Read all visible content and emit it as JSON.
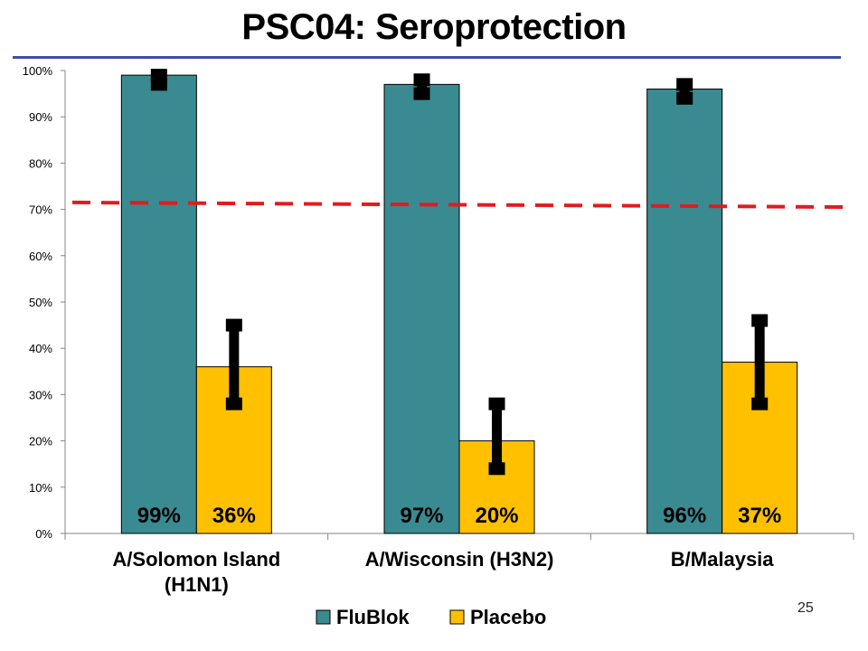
{
  "slide": {
    "title": "PSC04: Seroprotection",
    "slide_number": "25"
  },
  "colors": {
    "title_rule": "#3f4f9f",
    "flublok": "#3a8a91",
    "placebo": "#ffc000",
    "threshold": "#e41a1c",
    "error_bar": "#000000"
  },
  "chart_data": {
    "type": "bar",
    "categories": [
      [
        "A/Solomon Island",
        "(H1N1)"
      ],
      [
        "A/Wisconsin (H3N2)"
      ],
      [
        "B/Malaysia"
      ]
    ],
    "series": [
      {
        "name": "FluBlok",
        "values": [
          99,
          97,
          96
        ],
        "labels": [
          "99%",
          "97%",
          "96%"
        ],
        "ci": [
          [
            97,
            99
          ],
          [
            95,
            98
          ],
          [
            94,
            97
          ]
        ]
      },
      {
        "name": "Placebo",
        "values": [
          36,
          20,
          37
        ],
        "labels": [
          "36%",
          "20%",
          "37%"
        ],
        "ci": [
          [
            28,
            45
          ],
          [
            14,
            28
          ],
          [
            28,
            46
          ]
        ]
      }
    ],
    "y_ticks": [
      "0%",
      "10%",
      "20%",
      "30%",
      "40%",
      "50%",
      "60%",
      "70%",
      "80%",
      "90%",
      "100%"
    ],
    "ylim": [
      0,
      100
    ],
    "threshold_line": {
      "style": "dashed",
      "y_start": 71.5,
      "y_end": 70.5
    },
    "legend_position": "bottom",
    "grid": false
  }
}
